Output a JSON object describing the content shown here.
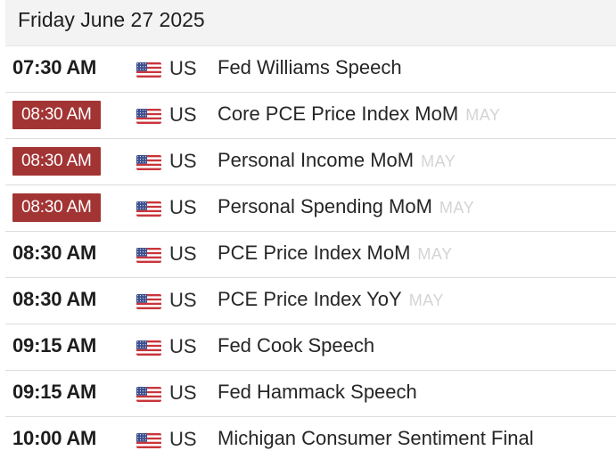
{
  "header": {
    "date": "Friday June 27 2025"
  },
  "events": [
    {
      "time": "07:30 AM",
      "highlight": false,
      "flag_icon": "us-flag-icon",
      "country": "US",
      "event": "Fed Williams Speech",
      "period": ""
    },
    {
      "time": "08:30 AM",
      "highlight": true,
      "flag_icon": "us-flag-icon",
      "country": "US",
      "event": "Core PCE Price Index MoM",
      "period": "MAY"
    },
    {
      "time": "08:30 AM",
      "highlight": true,
      "flag_icon": "us-flag-icon",
      "country": "US",
      "event": "Personal Income MoM",
      "period": "MAY"
    },
    {
      "time": "08:30 AM",
      "highlight": true,
      "flag_icon": "us-flag-icon",
      "country": "US",
      "event": "Personal Spending MoM",
      "period": "MAY"
    },
    {
      "time": "08:30 AM",
      "highlight": false,
      "flag_icon": "us-flag-icon",
      "country": "US",
      "event": "PCE Price Index MoM",
      "period": "MAY"
    },
    {
      "time": "08:30 AM",
      "highlight": false,
      "flag_icon": "us-flag-icon",
      "country": "US",
      "event": "PCE Price Index YoY",
      "period": "MAY"
    },
    {
      "time": "09:15 AM",
      "highlight": false,
      "flag_icon": "us-flag-icon",
      "country": "US",
      "event": "Fed Cook Speech",
      "period": ""
    },
    {
      "time": "09:15 AM",
      "highlight": false,
      "flag_icon": "us-flag-icon",
      "country": "US",
      "event": "Fed Hammack Speech",
      "period": ""
    },
    {
      "time": "10:00 AM",
      "highlight": false,
      "flag_icon": "us-flag-icon",
      "country": "US",
      "event": "Michigan Consumer Sentiment Final",
      "period": ""
    }
  ],
  "colors": {
    "highlight_bg": "#a33434",
    "header_bg": "#f3f3f3",
    "period_text": "#d4d4d4"
  }
}
